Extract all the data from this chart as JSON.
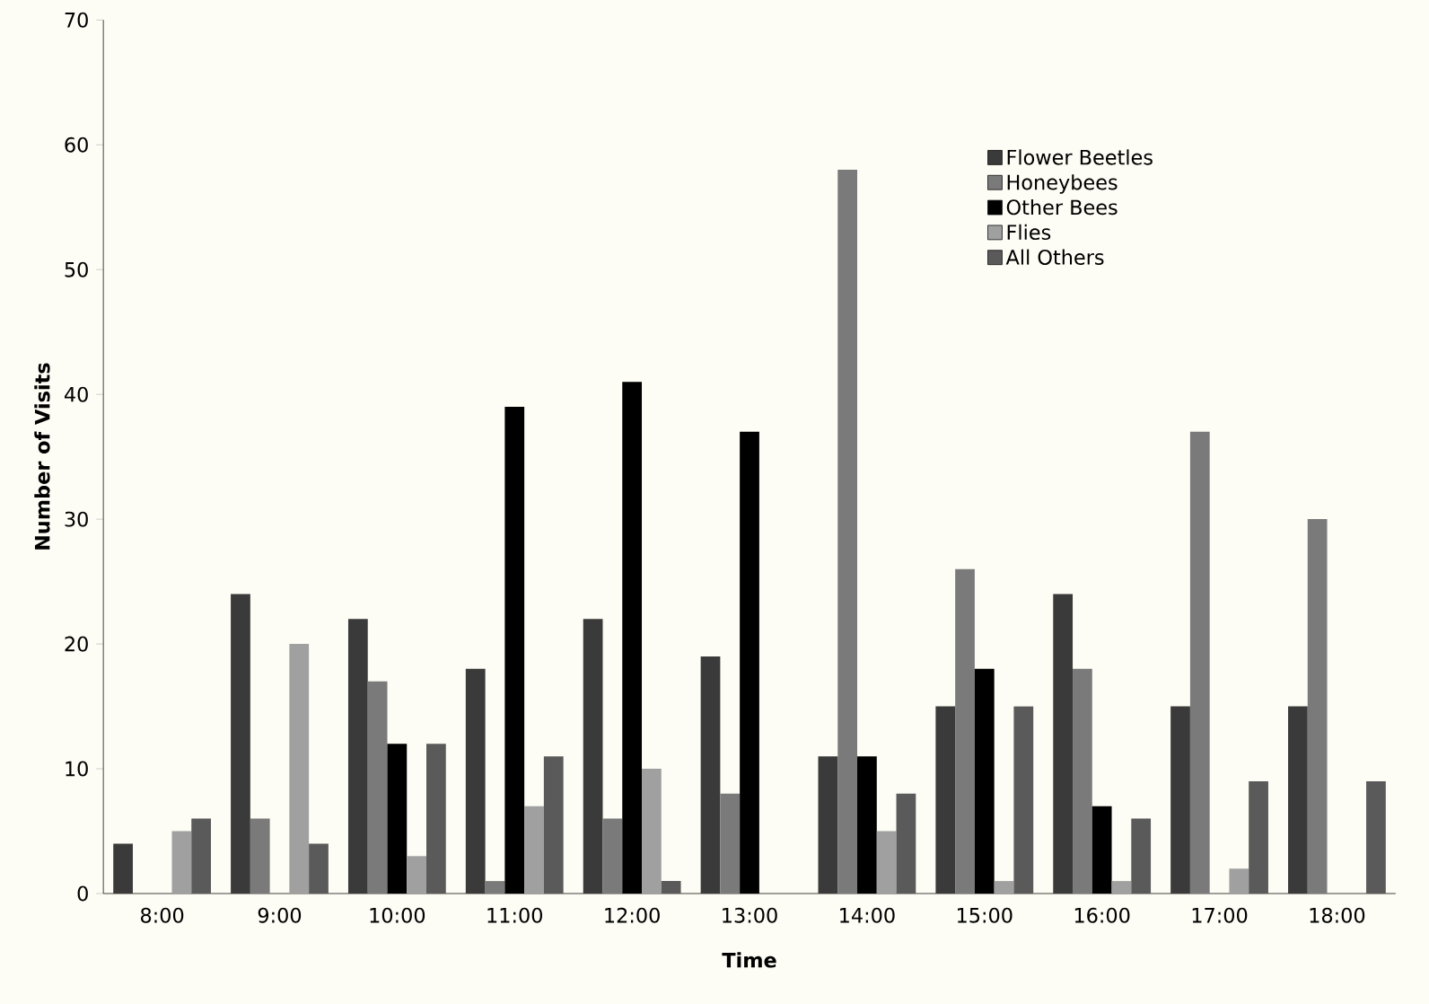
{
  "chart_data": {
    "type": "bar",
    "xlabel": "Time",
    "ylabel": "Number of Visits",
    "categories": [
      "8:00",
      "9:00",
      "10:00",
      "11:00",
      "12:00",
      "13:00",
      "14:00",
      "15:00",
      "16:00",
      "17:00",
      "18:00"
    ],
    "series": [
      {
        "name": "Flower Beetles",
        "color": "#3a3a3a",
        "values": [
          4,
          24,
          22,
          18,
          22,
          19,
          11,
          15,
          24,
          15,
          15
        ]
      },
      {
        "name": "Honeybees",
        "color": "#7a7a7a",
        "values": [
          0,
          6,
          17,
          1,
          6,
          8,
          58,
          26,
          18,
          37,
          30
        ]
      },
      {
        "name": "Other Bees",
        "color": "#000000",
        "values": [
          0,
          0,
          12,
          39,
          41,
          37,
          11,
          18,
          7,
          0,
          0
        ]
      },
      {
        "name": "Flies",
        "color": "#a0a0a0",
        "values": [
          5,
          20,
          3,
          7,
          10,
          0,
          5,
          1,
          1,
          2,
          0
        ]
      },
      {
        "name": "All Others",
        "color": "#5a5a5a",
        "values": [
          6,
          4,
          12,
          11,
          1,
          0,
          8,
          15,
          6,
          9,
          9
        ]
      }
    ],
    "ylim": [
      0,
      70
    ],
    "yticks": [
      0,
      10,
      20,
      30,
      40,
      50,
      60,
      70
    ],
    "grid": false,
    "legend": "top right"
  }
}
